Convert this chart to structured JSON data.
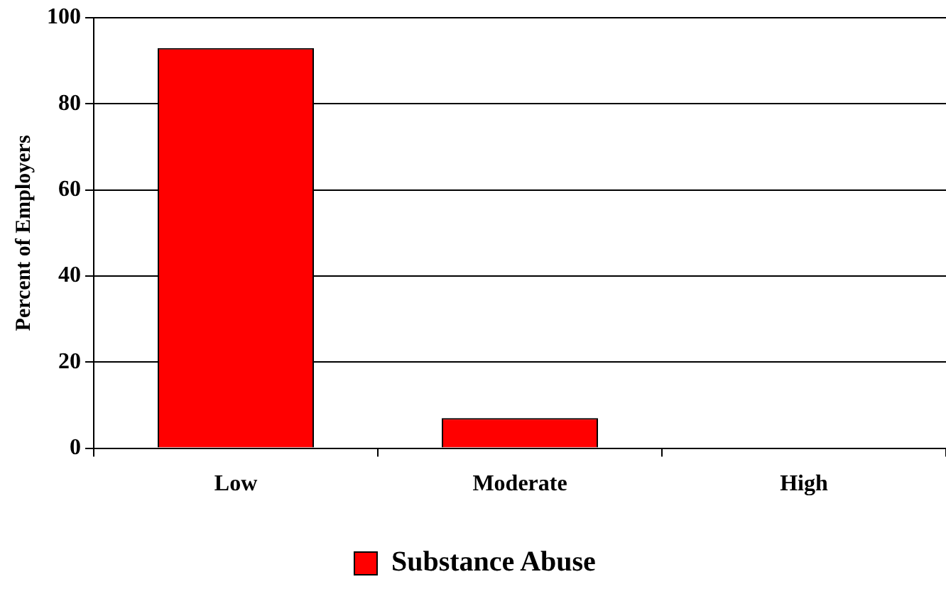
{
  "chart_data": {
    "type": "bar",
    "ylabel": "Percent of Employers",
    "categories": [
      "Low",
      "Moderate",
      "High"
    ],
    "series": [
      {
        "name": "Substance Abuse",
        "color": "#ff0000",
        "values": [
          93,
          7,
          0
        ]
      }
    ],
    "ylim": [
      0,
      100
    ],
    "yticks": [
      0,
      20,
      40,
      60,
      80,
      100
    ],
    "grid": "y",
    "legend": "bottom"
  }
}
